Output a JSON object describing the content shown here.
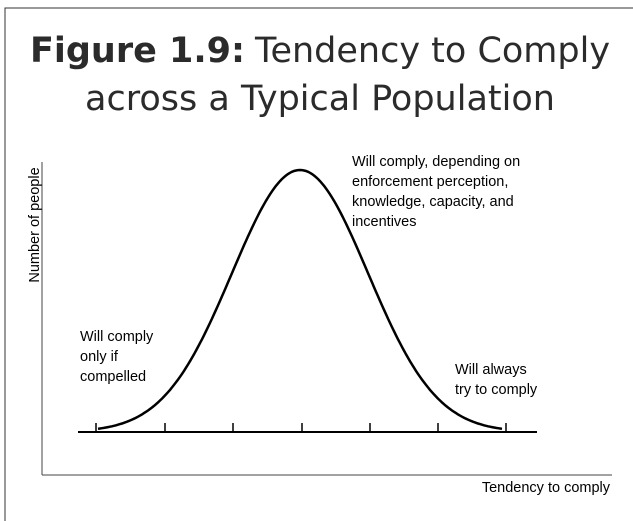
{
  "title": {
    "label": "Figure 1.9:",
    "line1": "Tendency to Comply",
    "line2": "across a Typical Population"
  },
  "axes": {
    "y_label": "Number of people",
    "x_label": "Tendency to comply"
  },
  "annotations": [
    {
      "lines": [
        "Will comply, depending on",
        "enforcement perception,",
        "knowledge, capacity, and",
        "incentives"
      ]
    },
    {
      "lines": [
        "Will comply",
        "only if",
        "compelled"
      ]
    },
    {
      "lines": [
        "Will always",
        "try to comply"
      ]
    }
  ]
}
